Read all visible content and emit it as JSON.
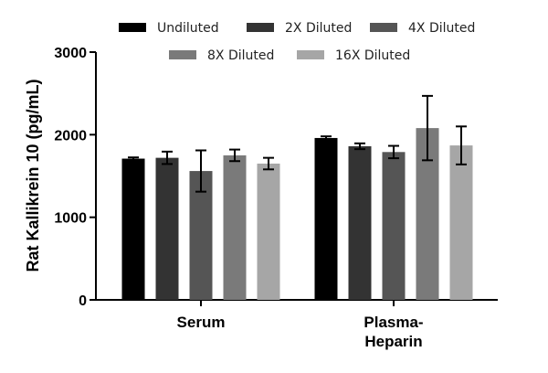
{
  "chart_data": {
    "type": "bar",
    "title": "",
    "xlabel": "",
    "ylabel": "Rat Kallikrein 10 (pg/mL)",
    "ylim": [
      0,
      3000
    ],
    "yticks": [
      0,
      1000,
      2000,
      3000
    ],
    "categories": [
      {
        "lines": [
          "Serum"
        ]
      },
      {
        "lines": [
          "Plasma-",
          "Heparin"
        ]
      }
    ],
    "legend_position": "top",
    "series": [
      {
        "name": "Undiluted",
        "color": "#000000",
        "values": [
          1710,
          1960
        ],
        "errors": [
          15,
          20
        ]
      },
      {
        "name": "2X Diluted",
        "color": "#333333",
        "values": [
          1720,
          1860
        ],
        "errors": [
          75,
          35
        ]
      },
      {
        "name": "4X Diluted",
        "color": "#555555",
        "values": [
          1560,
          1790
        ],
        "errors": [
          250,
          75
        ]
      },
      {
        "name": "8X Diluted",
        "color": "#7a7a7a",
        "values": [
          1750,
          2080
        ],
        "errors": [
          70,
          390
        ]
      },
      {
        "name": "16X Diluted",
        "color": "#a6a6a6",
        "values": [
          1650,
          1870
        ],
        "errors": [
          70,
          230
        ]
      }
    ]
  }
}
